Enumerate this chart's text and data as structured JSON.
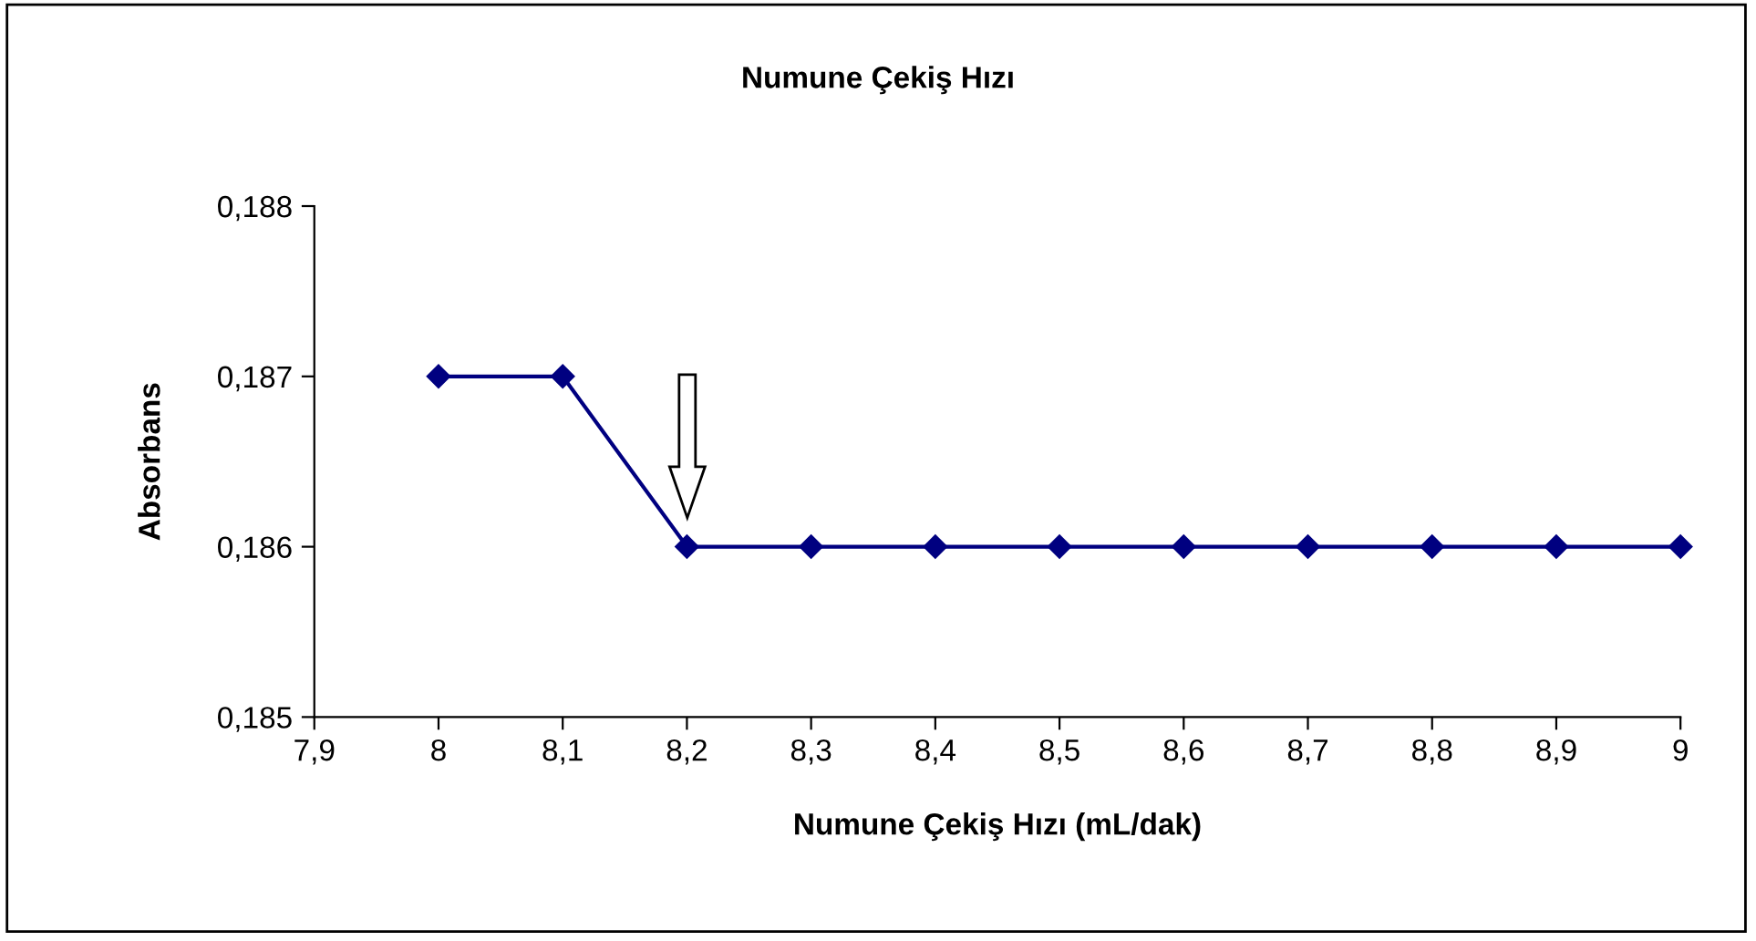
{
  "chart_data": {
    "type": "line",
    "title": "Numune Çekiş Hızı",
    "xlabel": "Numune Çekiş Hızı (mL/dak)",
    "ylabel": "Absorbans",
    "x": [
      8,
      8.1,
      8.2,
      8.3,
      8.4,
      8.5,
      8.6,
      8.7,
      8.8,
      8.9,
      9
    ],
    "series": [
      {
        "color": "#000080",
        "values": [
          0.187,
          0.187,
          0.186,
          0.186,
          0.186,
          0.186,
          0.186,
          0.186,
          0.186,
          0.186,
          0.186
        ]
      }
    ],
    "xlim": [
      7.9,
      9
    ],
    "xticks": [
      {
        "value": 7.9,
        "label": "7,9"
      },
      8,
      {
        "value": 8.1,
        "label": "8,1"
      },
      {
        "value": 8.2,
        "label": "8,2"
      },
      {
        "value": 8.3,
        "label": "8,3"
      },
      {
        "value": 8.4,
        "label": "8,4"
      },
      {
        "value": 8.5,
        "label": "8,5"
      },
      {
        "value": 8.6,
        "label": "8,6"
      },
      {
        "value": 8.7,
        "label": "8,7"
      },
      {
        "value": 8.8,
        "label": "8,8"
      },
      {
        "value": 8.9,
        "label": "8,9"
      },
      9
    ],
    "ylim": [
      0.185,
      0.188
    ],
    "yticks": [
      {
        "value": 0.185,
        "label": "0,185"
      },
      {
        "value": 0.186,
        "label": "0,186"
      },
      {
        "value": 0.187,
        "label": "0,187"
      },
      {
        "value": 0.188,
        "label": "0,188"
      }
    ],
    "grid": false,
    "legend": false,
    "marker": "diamond",
    "line_style": "solid"
  }
}
